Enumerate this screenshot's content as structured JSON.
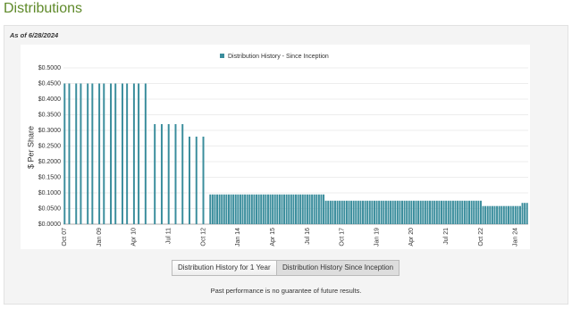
{
  "page_title": "Distributions",
  "as_of": "As of 6/28/2024",
  "buttons": [
    "Distribution History for 1 Year",
    "Distribution History Since Inception"
  ],
  "footnote": "Past performance is no guarantee of future results.",
  "chart_data": {
    "type": "bar",
    "y_label": "$ Per Share",
    "ylim": [
      0,
      0.5
    ],
    "yticks": [
      {
        "value": 0,
        "label": "$0.0000"
      },
      {
        "value": 0.05,
        "label": "$0.0500"
      },
      {
        "value": 0.1,
        "label": "$0.1000"
      },
      {
        "value": 0.15,
        "label": "$0.1500"
      },
      {
        "value": 0.2,
        "label": "$0.2000"
      },
      {
        "value": 0.25,
        "label": "$0.2500"
      },
      {
        "value": 0.3,
        "label": "$0.3000"
      },
      {
        "value": 0.35,
        "label": "$0.3500"
      },
      {
        "value": 0.4,
        "label": "$0.4000"
      },
      {
        "value": 0.45,
        "label": "$0.4500"
      },
      {
        "value": 0.5,
        "label": "$0.5000"
      }
    ],
    "grid": true,
    "categories": [
      "Oct 07",
      null,
      null,
      null,
      null,
      null,
      null,
      null,
      null,
      null,
      null,
      null,
      null,
      null,
      null,
      "Jan 09",
      null,
      null,
      null,
      null,
      null,
      null,
      null,
      null,
      null,
      null,
      null,
      null,
      null,
      null,
      "Apr 10",
      null,
      null,
      null,
      null,
      null,
      null,
      null,
      null,
      null,
      null,
      null,
      null,
      null,
      null,
      "Jul 11",
      null,
      null,
      null,
      null,
      null,
      null,
      null,
      null,
      null,
      null,
      null,
      null,
      null,
      null,
      "Oct 12",
      null,
      null,
      null,
      null,
      null,
      null,
      null,
      null,
      null,
      null,
      null,
      null,
      null,
      null,
      "Jan 14",
      null,
      null,
      null,
      null,
      null,
      null,
      null,
      null,
      null,
      null,
      null,
      null,
      null,
      null,
      "Apr 15",
      null,
      null,
      null,
      null,
      null,
      null,
      null,
      null,
      null,
      null,
      null,
      null,
      null,
      null,
      "Jul 16",
      null,
      null,
      null,
      null,
      null,
      null,
      null,
      null,
      null,
      null,
      null,
      null,
      null,
      null,
      "Oct 17",
      null,
      null,
      null,
      null,
      null,
      null,
      null,
      null,
      null,
      null,
      null,
      null,
      null,
      null,
      "Jan 19",
      null,
      null,
      null,
      null,
      null,
      null,
      null,
      null,
      null,
      null,
      null,
      null,
      null,
      null,
      "Apr 20",
      null,
      null,
      null,
      null,
      null,
      null,
      null,
      null,
      null,
      null,
      null,
      null,
      null,
      null,
      "Jul 21",
      null,
      null,
      null,
      null,
      null,
      null,
      null,
      null,
      null,
      null,
      null,
      null,
      null,
      null,
      "Oct 22",
      null,
      null,
      null,
      null,
      null,
      null,
      null,
      null,
      null,
      null,
      null,
      null,
      null,
      null,
      "Jan 24",
      null,
      null,
      null,
      null,
      null
    ],
    "series": [
      {
        "name": "Distribution History - Since Inception",
        "color": "#3a8d9c",
        "values": [
          0.45,
          null,
          0.45,
          null,
          null,
          0.45,
          null,
          0.45,
          null,
          null,
          0.45,
          null,
          0.45,
          null,
          null,
          0.45,
          null,
          0.45,
          null,
          null,
          0.45,
          null,
          0.45,
          null,
          null,
          0.45,
          null,
          0.45,
          null,
          null,
          0.45,
          null,
          0.45,
          null,
          null,
          0.45,
          null,
          null,
          null,
          0.32,
          null,
          null,
          0.32,
          null,
          null,
          0.32,
          null,
          null,
          0.32,
          null,
          null,
          0.32,
          null,
          null,
          0.28,
          null,
          null,
          0.28,
          null,
          null,
          0.28,
          null,
          null,
          0.095,
          0.095,
          0.095,
          0.095,
          0.095,
          0.095,
          0.095,
          0.095,
          0.095,
          0.095,
          0.095,
          0.095,
          0.095,
          0.095,
          0.095,
          0.095,
          0.095,
          0.095,
          0.095,
          0.095,
          0.095,
          0.095,
          0.095,
          0.095,
          0.095,
          0.095,
          0.095,
          0.095,
          0.095,
          0.095,
          0.095,
          0.095,
          0.095,
          0.095,
          0.095,
          0.095,
          0.095,
          0.095,
          0.095,
          0.095,
          0.095,
          0.095,
          0.095,
          0.095,
          0.095,
          0.095,
          0.095,
          0.095,
          0.095,
          0.095,
          0.075,
          0.075,
          0.075,
          0.075,
          0.075,
          0.075,
          0.075,
          0.075,
          0.075,
          0.075,
          0.075,
          0.075,
          0.075,
          0.075,
          0.075,
          0.075,
          0.075,
          0.075,
          0.075,
          0.075,
          0.075,
          0.075,
          0.075,
          0.075,
          0.075,
          0.075,
          0.075,
          0.075,
          0.075,
          0.075,
          0.075,
          0.075,
          0.075,
          0.075,
          0.075,
          0.075,
          0.075,
          0.075,
          0.075,
          0.075,
          0.075,
          0.075,
          0.075,
          0.075,
          0.075,
          0.075,
          0.075,
          0.075,
          0.075,
          0.075,
          0.075,
          0.075,
          0.075,
          0.075,
          0.075,
          0.075,
          0.075,
          0.075,
          0.075,
          0.075,
          0.075,
          0.075,
          0.075,
          0.075,
          0.075,
          0.075,
          0.075,
          0.075,
          0.058,
          0.058,
          0.058,
          0.058,
          0.058,
          0.058,
          0.058,
          0.058,
          0.058,
          0.058,
          0.058,
          0.058,
          0.058,
          0.058,
          0.058,
          0.058,
          0.058,
          0.068,
          0.068,
          0.068
        ]
      }
    ]
  }
}
